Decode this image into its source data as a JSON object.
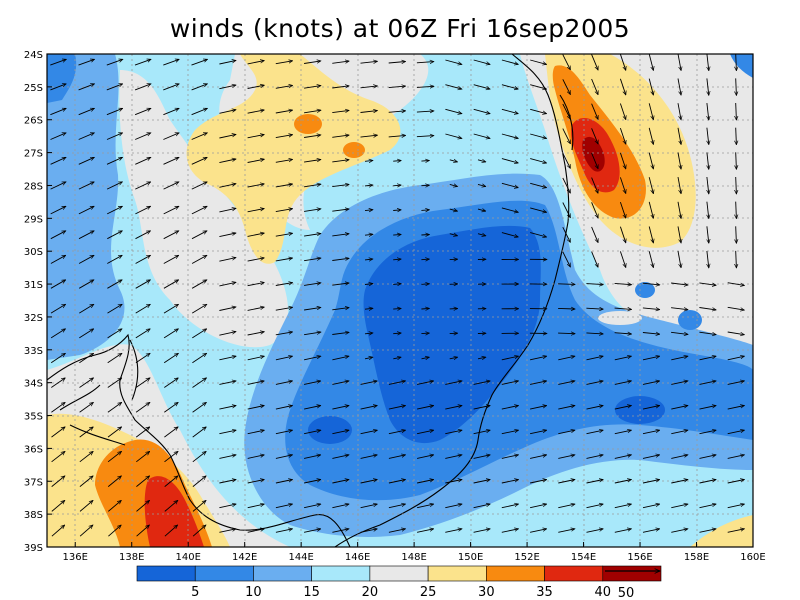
{
  "title": "winds (knots) at 06Z Fri 16sep2005",
  "chart_data": {
    "type": "heatmap",
    "title": "winds (knots) at 06Z Fri 16sep2005",
    "variable": "wind speed",
    "units": "knots",
    "lon_range": [
      135,
      160
    ],
    "lat_range": [
      -39,
      -24
    ],
    "x_ticks": [
      "136E",
      "138E",
      "140E",
      "142E",
      "144E",
      "146E",
      "148E",
      "150E",
      "152E",
      "154E",
      "156E",
      "158E",
      "160E"
    ],
    "x_tick_values": [
      136,
      138,
      140,
      142,
      144,
      146,
      148,
      150,
      152,
      154,
      156,
      158,
      160
    ],
    "y_ticks": [
      "24S",
      "25S",
      "26S",
      "27S",
      "28S",
      "29S",
      "30S",
      "31S",
      "32S",
      "33S",
      "34S",
      "35S",
      "36S",
      "37S",
      "38S",
      "39S"
    ],
    "y_tick_values": [
      -24,
      -25,
      -26,
      -27,
      -28,
      -29,
      -30,
      -31,
      -32,
      -33,
      -34,
      -35,
      -36,
      -37,
      -38,
      -39
    ],
    "grid": true,
    "legend_position": "bottom",
    "colorbar": {
      "labels": [
        "5",
        "10",
        "15",
        "20",
        "25",
        "30",
        "35",
        "40"
      ],
      "colors": [
        "#1565d8",
        "#3388e6",
        "#6aaef0",
        "#a8e8fa",
        "#e8e8e8",
        "#fbe38c",
        "#f88a10",
        "#e02810",
        "#a00000"
      ]
    },
    "wind_vector_reference": {
      "label": "50",
      "value": 50
    },
    "regions": [
      {
        "name": "weak-wind-core-inland",
        "level": 5,
        "color": "#1565d8"
      },
      {
        "name": "east-coast-jet-max",
        "level": 40,
        "color": "#a00000"
      },
      {
        "name": "southwest-jet-max",
        "level": 40,
        "color": "#a00000"
      }
    ]
  }
}
